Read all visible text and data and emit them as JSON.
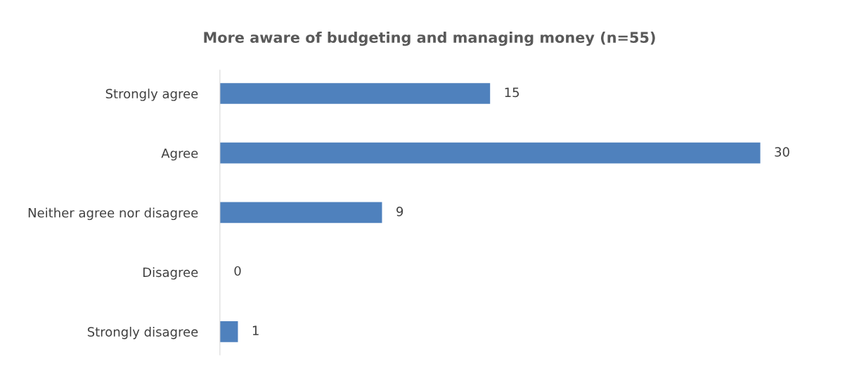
{
  "chart_data": {
    "type": "bar",
    "orientation": "horizontal",
    "title": "More aware of budgeting and managing money (n=55)",
    "categories": [
      "Strongly agree",
      "Agree",
      "Neither agree nor disagree",
      "Disagree",
      "Strongly disagree"
    ],
    "values": [
      15,
      30,
      9,
      0,
      1
    ],
    "color": "#4f81bd",
    "data_labels": true,
    "grid": false,
    "legend": false
  }
}
